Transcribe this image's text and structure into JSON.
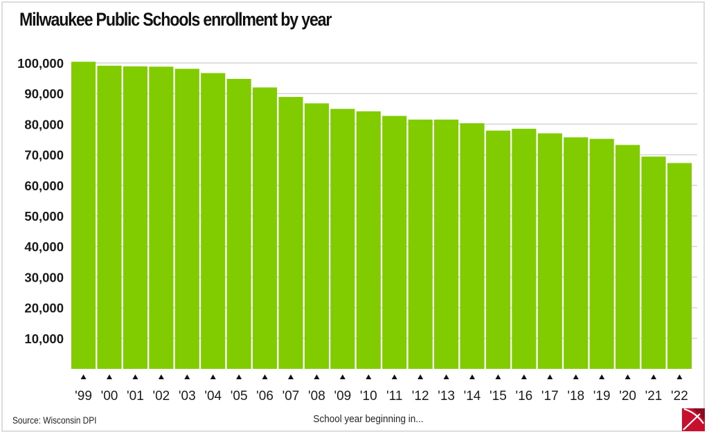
{
  "chart_data": {
    "type": "bar",
    "title": "Milwaukee Public Schools enrollment by year",
    "xlabel": "School year beginning in...",
    "ylabel": "",
    "source": "Source: Wisconsin DPI",
    "ylim": [
      0,
      100000
    ],
    "yticks": [
      10000,
      20000,
      30000,
      40000,
      50000,
      60000,
      70000,
      80000,
      90000,
      100000
    ],
    "ytick_labels": [
      "10,000",
      "20,000",
      "30,000",
      "40,000",
      "50,000",
      "60,000",
      "70,000",
      "80,000",
      "90,000",
      "100,000"
    ],
    "grid": true,
    "categories": [
      "'99",
      "'00",
      "'01",
      "'02",
      "'03",
      "'04",
      "'05",
      "'06",
      "'07",
      "'08",
      "'09",
      "'10",
      "'11",
      "'12",
      "'13",
      "'14",
      "'15",
      "'16",
      "'17",
      "'18",
      "'19",
      "'20",
      "'21",
      "'22"
    ],
    "values": [
      100400,
      99100,
      98900,
      98800,
      98100,
      96700,
      94800,
      92000,
      88900,
      86800,
      85000,
      84200,
      82700,
      81500,
      81500,
      80300,
      77900,
      78500,
      77000,
      75700,
      75200,
      73200,
      69400,
      67300
    ],
    "colors": {
      "bar": "#80cc00",
      "grid": "#d4d4d4",
      "tick_marker": "#111111"
    }
  },
  "logo": {
    "icon": "pickaxe-logo-icon",
    "colors": {
      "main": "#c8102e",
      "dark": "#8b0d22"
    }
  }
}
